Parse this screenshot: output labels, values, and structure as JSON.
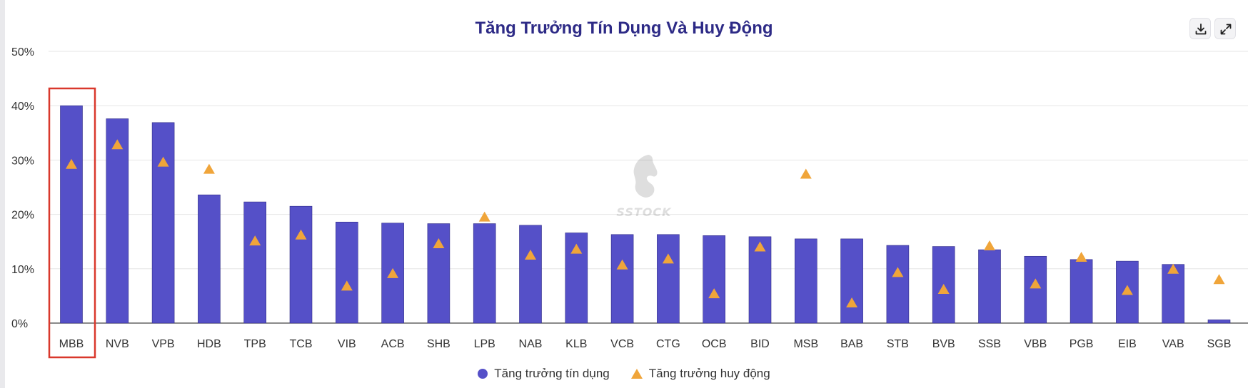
{
  "header": {
    "download_icon": "download-icon",
    "fullscreen_icon": "expand-icon"
  },
  "watermark": {
    "text": "SSTOCK",
    "icon": "horse-head-logo"
  },
  "colors": {
    "bar": "#5550c8",
    "triangle": "#f0a53a",
    "title": "#2d2a86",
    "highlight": "#d9382c"
  },
  "highlight": {
    "category": "MBB"
  },
  "chart_data": {
    "type": "bar",
    "title": "Tăng Trưởng Tín Dụng Và Huy Động",
    "xlabel": "",
    "ylabel": "",
    "ylim": [
      0,
      50
    ],
    "yticks": [
      "0%",
      "10%",
      "20%",
      "30%",
      "40%",
      "50%"
    ],
    "grid": true,
    "legend_position": "bottom",
    "categories": [
      "MBB",
      "NVB",
      "VPB",
      "HDB",
      "TPB",
      "TCB",
      "VIB",
      "ACB",
      "SHB",
      "LPB",
      "NAB",
      "KLB",
      "VCB",
      "CTG",
      "OCB",
      "BID",
      "MSB",
      "BAB",
      "STB",
      "BVB",
      "SSB",
      "VBB",
      "PGB",
      "EIB",
      "VAB",
      "SGB"
    ],
    "series": [
      {
        "name": "Tăng trưởng tín dụng",
        "type": "bar",
        "color": "#5550c8",
        "values": [
          40.0,
          37.6,
          36.9,
          23.6,
          22.3,
          21.5,
          18.6,
          18.4,
          18.3,
          18.3,
          18.0,
          16.6,
          16.3,
          16.3,
          16.1,
          15.9,
          15.5,
          15.5,
          14.3,
          14.1,
          13.5,
          12.3,
          11.7,
          11.4,
          10.8,
          0.6
        ]
      },
      {
        "name": "Tăng trưởng huy động",
        "type": "scatter",
        "marker": "triangle",
        "color": "#f0a53a",
        "values": [
          29.3,
          32.9,
          29.7,
          28.4,
          15.2,
          16.3,
          6.9,
          9.2,
          14.7,
          19.6,
          12.6,
          13.7,
          10.8,
          11.9,
          5.5,
          14.1,
          27.5,
          3.8,
          9.4,
          6.3,
          14.3,
          7.3,
          12.2,
          6.1,
          10.0,
          8.1
        ]
      }
    ]
  }
}
